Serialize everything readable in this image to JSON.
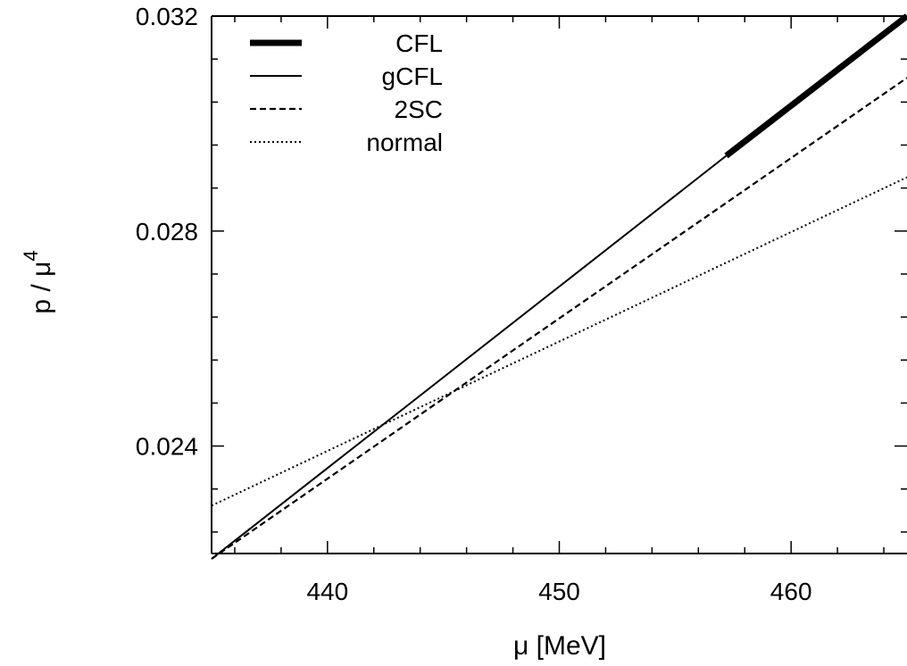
{
  "chart_data": {
    "type": "line",
    "title": "",
    "xlabel": "μ [MeV]",
    "ylabel": "p / μ",
    "ylabel_superscript": "4",
    "xlim": [
      435,
      465
    ],
    "ylim": [
      0.022,
      0.032
    ],
    "xticks": [
      440,
      450,
      460
    ],
    "xtick_labels": [
      "440",
      "450",
      "460"
    ],
    "yticks": [
      0.024,
      0.028,
      0.032
    ],
    "ytick_labels": [
      "0.024",
      "0.028",
      "0.032"
    ],
    "grid": false,
    "legend_position": "top-left",
    "series": [
      {
        "name": "CFL",
        "style": "thick-solid",
        "x": [
          457.2,
          465.0
        ],
        "y": [
          0.0294,
          0.032
        ]
      },
      {
        "name": "gCFL",
        "style": "solid",
        "x": [
          435.0,
          457.2
        ],
        "y": [
          0.0219,
          0.0294
        ]
      },
      {
        "name": "2SC",
        "style": "dashed",
        "x": [
          435.0,
          465.0
        ],
        "y": [
          0.0219,
          0.03085
        ]
      },
      {
        "name": "normal",
        "style": "dotted",
        "x": [
          435.0,
          465.0
        ],
        "y": [
          0.02289,
          0.029
        ]
      }
    ]
  }
}
